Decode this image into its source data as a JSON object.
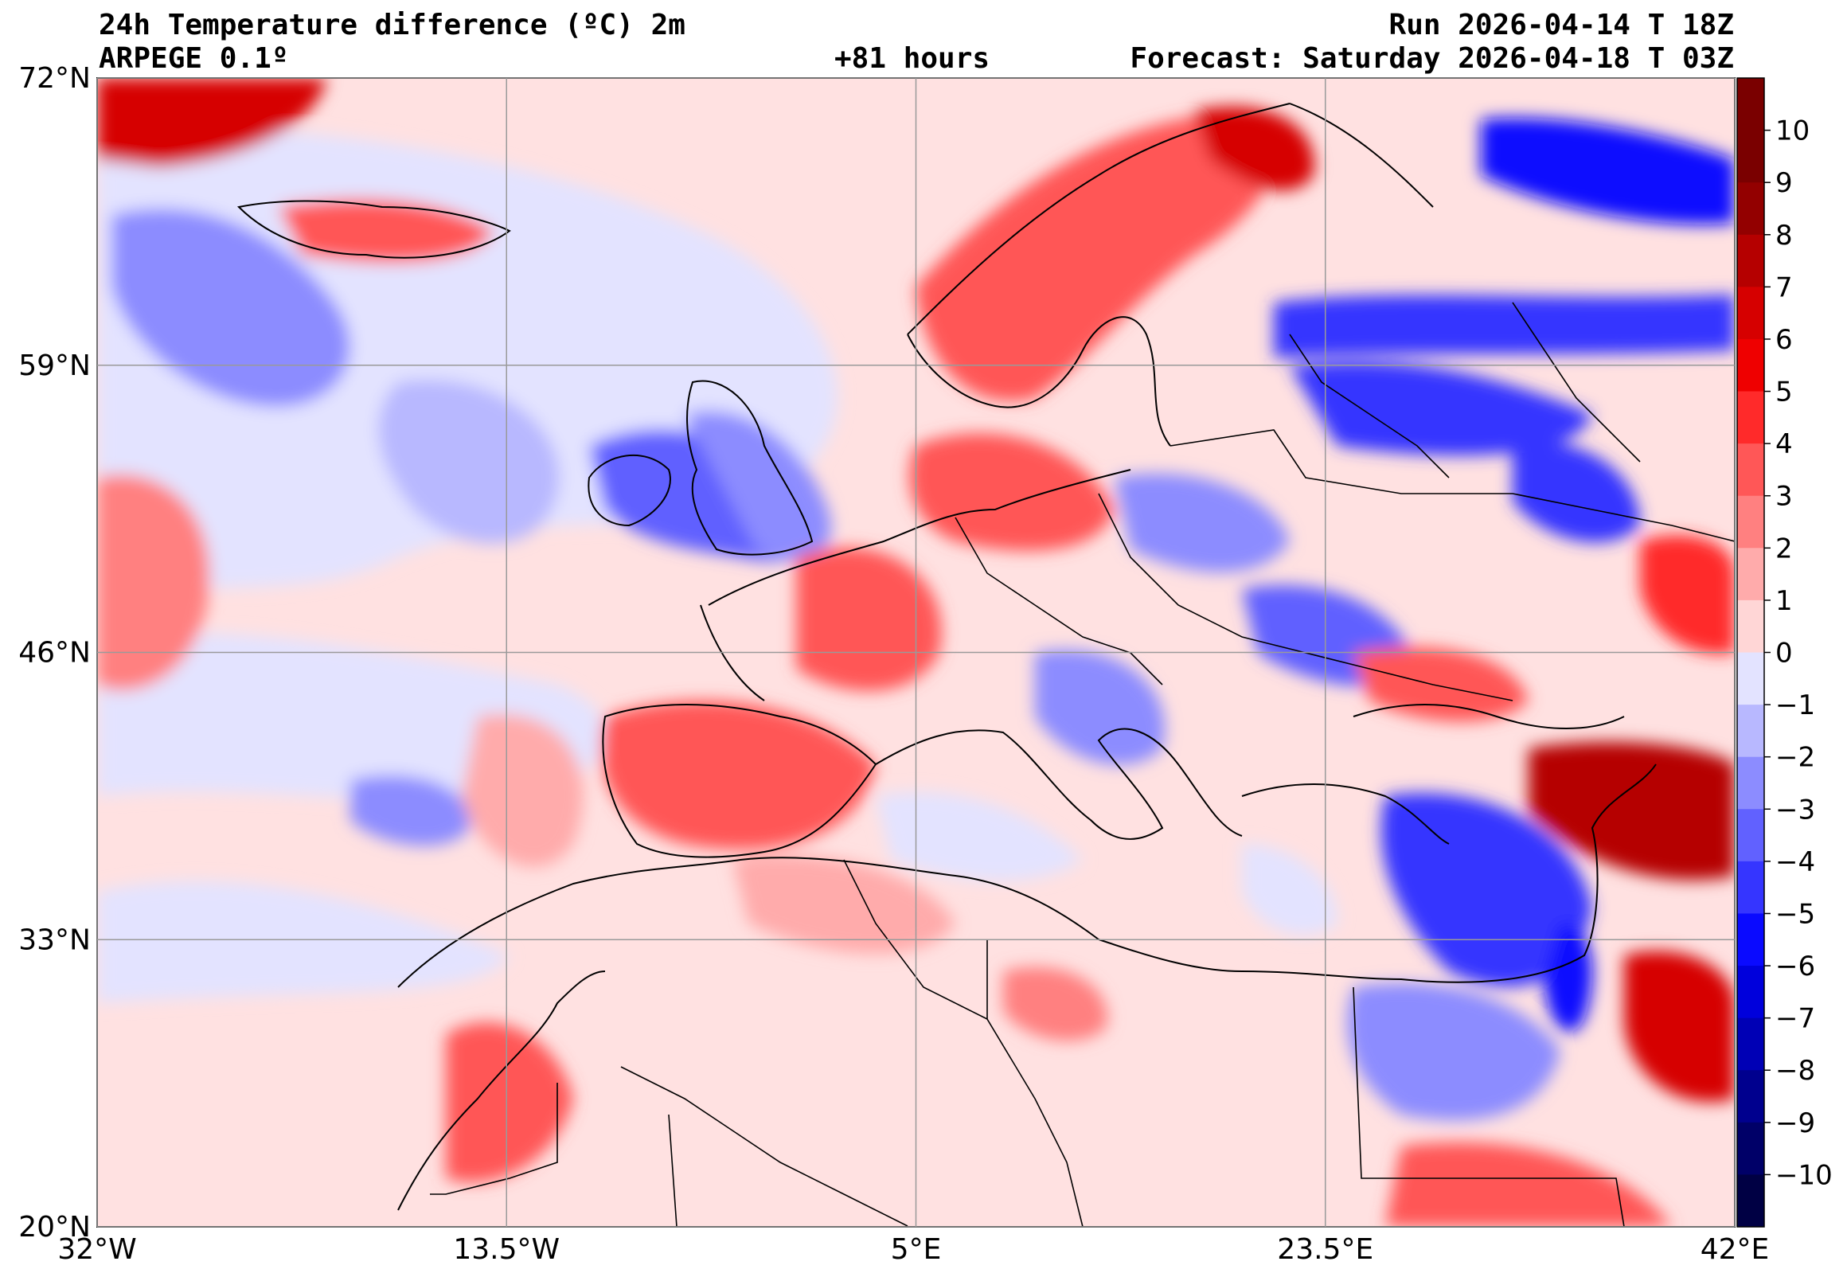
{
  "header": {
    "title": "24h Temperature difference (ºC) 2m",
    "model": "ARPEGE 0.1º",
    "lead_time": "+81 hours",
    "run": "Run 2026-04-14 T 18Z",
    "forecast": "Forecast: Saturday 2026-04-18 T 03Z"
  },
  "map": {
    "lon_range": [
      -32,
      42
    ],
    "lat_range": [
      20,
      72
    ],
    "lat_ticks": [
      {
        "value": 72,
        "label": "72°N"
      },
      {
        "value": 59,
        "label": "59°N"
      },
      {
        "value": 46,
        "label": "46°N"
      },
      {
        "value": 33,
        "label": "33°N"
      },
      {
        "value": 20,
        "label": "20°N"
      }
    ],
    "lon_ticks": [
      {
        "value": -32,
        "label": "32°W"
      },
      {
        "value": -13.5,
        "label": "13.5°W"
      },
      {
        "value": 5,
        "label": "5°E"
      },
      {
        "value": 23.5,
        "label": "23.5°E"
      },
      {
        "value": 42,
        "label": "42°E"
      }
    ]
  },
  "colorbar": {
    "levels": [
      {
        "value": 10,
        "label": "10",
        "color": "#7a0000"
      },
      {
        "value": 9,
        "label": "9",
        "color": "#930000"
      },
      {
        "value": 8,
        "label": "8",
        "color": "#b50000"
      },
      {
        "value": 7,
        "label": "7",
        "color": "#d60000"
      },
      {
        "value": 6,
        "label": "6",
        "color": "#ef0000"
      },
      {
        "value": 5,
        "label": "5",
        "color": "#ff2a2a"
      },
      {
        "value": 4,
        "label": "4",
        "color": "#ff5757"
      },
      {
        "value": 3,
        "label": "3",
        "color": "#ff8080"
      },
      {
        "value": 2,
        "label": "2",
        "color": "#ffabab"
      },
      {
        "value": 1,
        "label": "1",
        "color": "#ffd6d6"
      },
      {
        "value": 0,
        "label": "0",
        "color": "#e3e3ff"
      },
      {
        "value": -1,
        "label": "−1",
        "color": "#b8b8ff"
      },
      {
        "value": -2,
        "label": "−2",
        "color": "#8c8cff"
      },
      {
        "value": -3,
        "label": "−3",
        "color": "#6161ff"
      },
      {
        "value": -4,
        "label": "−4",
        "color": "#3535ff"
      },
      {
        "value": -5,
        "label": "−5",
        "color": "#0a0aff"
      },
      {
        "value": -6,
        "label": "−6",
        "color": "#0000dc"
      },
      {
        "value": -7,
        "label": "−7",
        "color": "#0000b5"
      },
      {
        "value": -8,
        "label": "−8",
        "color": "#00008e"
      },
      {
        "value": -9,
        "label": "−9",
        "color": "#000068"
      },
      {
        "value": -10,
        "label": "−10",
        "color": "#000044"
      }
    ]
  }
}
